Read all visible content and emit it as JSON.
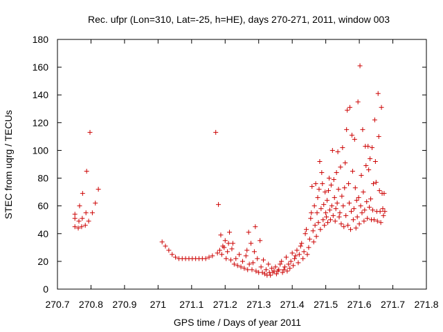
{
  "chart_data": {
    "type": "scatter",
    "title": "Rec. ufpr (Lon=310, Lat=-25, h=HE), days 270-271, 2011, window 003",
    "xlabel": "GPS time / Days of year 2011",
    "ylabel": "STEC from uqrg / TECUs",
    "xlim": [
      270.7,
      271.8
    ],
    "ylim": [
      0,
      180
    ],
    "x_ticks": [
      "270.7",
      "270.8",
      "270.9",
      "271",
      "271.1",
      "271.2",
      "271.3",
      "271.4",
      "271.5",
      "271.6",
      "271.7",
      "271.8"
    ],
    "y_ticks": [
      "0",
      "20",
      "40",
      "60",
      "80",
      "100",
      "120",
      "140",
      "160",
      "180"
    ],
    "grid": false,
    "marker": "plus",
    "color": "#cc0000",
    "series": [
      {
        "points": [
          [
            270.752,
            45
          ],
          [
            270.752,
            51
          ],
          [
            270.752,
            54
          ],
          [
            270.762,
            44
          ],
          [
            270.764,
            49
          ],
          [
            270.766,
            60
          ],
          [
            270.772,
            45
          ],
          [
            270.774,
            51
          ],
          [
            270.775,
            69
          ],
          [
            270.783,
            46
          ],
          [
            270.785,
            55
          ],
          [
            270.787,
            85
          ],
          [
            270.793,
            49
          ],
          [
            270.797,
            113
          ],
          [
            270.804,
            55
          ],
          [
            270.813,
            62
          ],
          [
            270.822,
            72
          ],
          [
            271.012,
            34
          ],
          [
            271.022,
            31
          ],
          [
            271.032,
            28
          ],
          [
            271.042,
            25
          ],
          [
            271.052,
            23
          ],
          [
            271.062,
            22
          ],
          [
            271.072,
            22
          ],
          [
            271.082,
            22
          ],
          [
            271.092,
            22
          ],
          [
            271.102,
            22
          ],
          [
            271.112,
            22
          ],
          [
            271.122,
            22
          ],
          [
            271.132,
            22
          ],
          [
            271.142,
            22
          ],
          [
            271.152,
            23
          ],
          [
            271.162,
            24
          ],
          [
            271.172,
            113
          ],
          [
            271.177,
            26
          ],
          [
            271.18,
            61
          ],
          [
            271.184,
            28
          ],
          [
            271.187,
            39
          ],
          [
            271.19,
            25
          ],
          [
            271.193,
            31
          ],
          [
            271.197,
            30
          ],
          [
            271.2,
            35
          ],
          [
            271.203,
            22
          ],
          [
            271.207,
            27
          ],
          [
            271.21,
            33
          ],
          [
            271.213,
            41
          ],
          [
            271.217,
            21
          ],
          [
            271.22,
            29
          ],
          [
            271.223,
            33
          ],
          [
            271.227,
            18
          ],
          [
            271.232,
            22
          ],
          [
            271.237,
            17
          ],
          [
            271.242,
            25
          ],
          [
            271.247,
            16
          ],
          [
            271.252,
            20
          ],
          [
            271.257,
            15
          ],
          [
            271.262,
            24
          ],
          [
            271.265,
            28
          ],
          [
            271.267,
            14
          ],
          [
            271.27,
            41
          ],
          [
            271.272,
            18
          ],
          [
            271.277,
            33
          ],
          [
            271.28,
            14
          ],
          [
            271.283,
            19
          ],
          [
            271.287,
            27
          ],
          [
            271.29,
            45
          ],
          [
            271.292,
            13
          ],
          [
            271.296,
            22
          ],
          [
            271.3,
            12
          ],
          [
            271.304,
            35
          ],
          [
            271.307,
            16
          ],
          [
            271.311,
            12
          ],
          [
            271.314,
            21
          ],
          [
            271.318,
            11
          ],
          [
            271.322,
            14
          ],
          [
            271.325,
            10
          ],
          [
            271.329,
            18
          ],
          [
            271.332,
            12
          ],
          [
            271.335,
            10
          ],
          [
            271.339,
            15
          ],
          [
            271.342,
            12
          ],
          [
            271.346,
            13
          ],
          [
            271.35,
            16
          ],
          [
            271.353,
            11
          ],
          [
            271.357,
            13
          ],
          [
            271.36,
            14
          ],
          [
            271.364,
            18
          ],
          [
            271.368,
            20
          ],
          [
            271.371,
            12
          ],
          [
            271.375,
            14
          ],
          [
            271.378,
            16
          ],
          [
            271.382,
            23
          ],
          [
            271.385,
            13
          ],
          [
            271.389,
            18
          ],
          [
            271.393,
            15
          ],
          [
            271.396,
            20
          ],
          [
            271.4,
            26
          ],
          [
            271.403,
            17
          ],
          [
            271.407,
            22
          ],
          [
            271.41,
            24
          ],
          [
            271.414,
            28
          ],
          [
            271.418,
            19
          ],
          [
            271.421,
            25
          ],
          [
            271.425,
            31
          ],
          [
            271.428,
            33
          ],
          [
            271.432,
            22
          ],
          [
            271.435,
            27
          ],
          [
            271.439,
            40
          ],
          [
            271.442,
            43
          ],
          [
            271.445,
            25
          ],
          [
            271.449,
            30
          ],
          [
            271.452,
            36
          ],
          [
            271.455,
            51
          ],
          [
            271.457,
            55
          ],
          [
            271.459,
            74
          ],
          [
            271.462,
            42
          ],
          [
            271.464,
            34
          ],
          [
            271.466,
            60
          ],
          [
            271.468,
            46
          ],
          [
            271.47,
            76
          ],
          [
            271.472,
            38
          ],
          [
            271.474,
            55
          ],
          [
            271.476,
            66
          ],
          [
            271.478,
            48
          ],
          [
            271.48,
            72
          ],
          [
            271.482,
            92
          ],
          [
            271.484,
            43
          ],
          [
            271.486,
            58
          ],
          [
            271.488,
            84
          ],
          [
            271.49,
            76
          ],
          [
            271.492,
            50
          ],
          [
            271.494,
            61
          ],
          [
            271.496,
            46
          ],
          [
            271.498,
            70
          ],
          [
            271.5,
            55
          ],
          [
            271.502,
            52
          ],
          [
            271.504,
            64
          ],
          [
            271.506,
            48
          ],
          [
            271.508,
            71
          ],
          [
            271.51,
            80
          ],
          [
            271.512,
            57
          ],
          [
            271.514,
            50
          ],
          [
            271.516,
            75
          ],
          [
            271.518,
            60
          ],
          [
            271.52,
            100
          ],
          [
            271.522,
            53
          ],
          [
            271.524,
            79
          ],
          [
            271.526,
            66
          ],
          [
            271.528,
            49
          ],
          [
            271.53,
            58
          ],
          [
            271.532,
            84
          ],
          [
            271.534,
            62
          ],
          [
            271.536,
            99
          ],
          [
            271.538,
            72
          ],
          [
            271.54,
            52
          ],
          [
            271.542,
            55
          ],
          [
            271.544,
            88
          ],
          [
            271.546,
            47
          ],
          [
            271.548,
            67
          ],
          [
            271.55,
            102
          ],
          [
            271.552,
            60
          ],
          [
            271.554,
            45
          ],
          [
            271.556,
            73
          ],
          [
            271.558,
            91
          ],
          [
            271.56,
            53
          ],
          [
            271.562,
            115
          ],
          [
            271.564,
            129
          ],
          [
            271.566,
            46
          ],
          [
            271.568,
            76
          ],
          [
            271.57,
            62
          ],
          [
            271.572,
            131
          ],
          [
            271.574,
            43
          ],
          [
            271.576,
            56
          ],
          [
            271.578,
            111
          ],
          [
            271.58,
            85
          ],
          [
            271.582,
            50
          ],
          [
            271.584,
            58
          ],
          [
            271.586,
            108
          ],
          [
            271.588,
            73
          ],
          [
            271.59,
            44
          ],
          [
            271.592,
            64
          ],
          [
            271.594,
            52
          ],
          [
            271.596,
            135
          ],
          [
            271.598,
            66
          ],
          [
            271.6,
            47
          ],
          [
            271.602,
            161
          ],
          [
            271.604,
            60
          ],
          [
            271.606,
            82
          ],
          [
            271.608,
            55
          ],
          [
            271.61,
            115
          ],
          [
            271.612,
            70
          ],
          [
            271.614,
            49
          ],
          [
            271.616,
            57
          ],
          [
            271.618,
            103
          ],
          [
            271.62,
            89
          ],
          [
            271.622,
            63
          ],
          [
            271.624,
            51
          ],
          [
            271.626,
            103
          ],
          [
            271.628,
            86
          ],
          [
            271.63,
            59
          ],
          [
            271.632,
            94
          ],
          [
            271.634,
            65
          ],
          [
            271.636,
            50
          ],
          [
            271.638,
            102
          ],
          [
            271.64,
            57
          ],
          [
            271.642,
            76
          ],
          [
            271.644,
            50
          ],
          [
            271.646,
            122
          ],
          [
            271.648,
            92
          ],
          [
            271.65,
            77
          ],
          [
            271.652,
            56
          ],
          [
            271.654,
            49
          ],
          [
            271.656,
            141
          ],
          [
            271.658,
            110
          ],
          [
            271.66,
            71
          ],
          [
            271.662,
            56
          ],
          [
            271.664,
            48
          ],
          [
            271.666,
            131
          ],
          [
            271.668,
            69
          ],
          [
            271.67,
            58
          ],
          [
            271.672,
            53
          ],
          [
            271.674,
            69
          ],
          [
            271.676,
            56
          ]
        ]
      }
    ]
  }
}
